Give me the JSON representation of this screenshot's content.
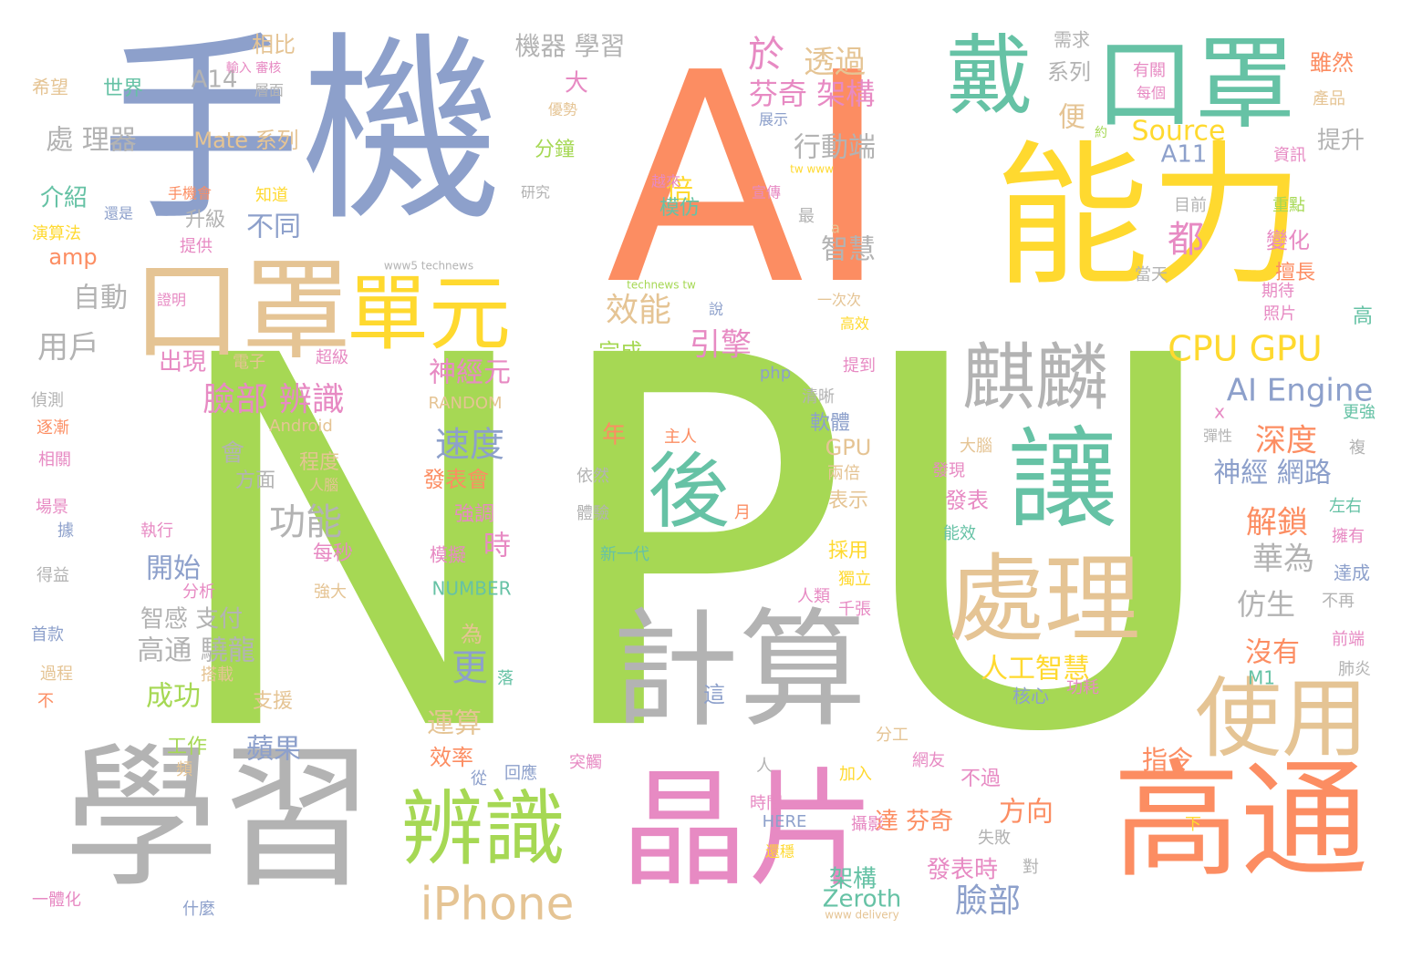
{
  "palette": {
    "green": "#a6d854",
    "orange": "#fc8d62",
    "blue": "#8da0cb",
    "yellow": "#ffd92f",
    "teal": "#66c2a5",
    "pink": "#e78ac3",
    "tan": "#e5c494",
    "gray": "#b3b3b3"
  },
  "words": [
    {
      "text": "NPU",
      "color": "green"
    },
    {
      "text": "AI",
      "color": "orange"
    },
    {
      "text": "手機",
      "color": "blue"
    },
    {
      "text": "能力",
      "color": "yellow"
    },
    {
      "text": "學習",
      "color": "gray"
    },
    {
      "text": "晶片",
      "color": "pink"
    },
    {
      "text": "高通",
      "color": "orange"
    },
    {
      "text": "計算",
      "color": "gray"
    },
    {
      "text": "口罩",
      "color": "teal"
    },
    {
      "text": "戴",
      "color": "teal"
    },
    {
      "text": "口罩",
      "color": "tan"
    },
    {
      "text": "讓",
      "color": "teal"
    },
    {
      "text": "處理",
      "color": "tan"
    },
    {
      "text": "後",
      "color": "teal"
    },
    {
      "text": "辨識",
      "color": "green"
    },
    {
      "text": "使用",
      "color": "tan"
    },
    {
      "text": "單元",
      "color": "yellow"
    },
    {
      "text": "麒麟",
      "color": "gray"
    },
    {
      "text": "iPhone",
      "color": "tan"
    },
    {
      "text": "CPU GPU",
      "color": "yellow"
    },
    {
      "text": "AI Engine",
      "color": "blue"
    },
    {
      "text": "臉部 辨識",
      "color": "pink"
    },
    {
      "text": "速度",
      "color": "blue"
    },
    {
      "text": "功能",
      "color": "gray"
    },
    {
      "text": "機器 學習",
      "color": "gray"
    },
    {
      "text": "處 理器",
      "color": "gray"
    },
    {
      "text": "Mate 系列",
      "color": "tan"
    },
    {
      "text": "A14",
      "color": "gray"
    },
    {
      "text": "相比",
      "color": "tan"
    },
    {
      "text": "於",
      "color": "pink"
    },
    {
      "text": "透過",
      "color": "tan"
    },
    {
      "text": "芬奇 架構",
      "color": "pink"
    },
    {
      "text": "大",
      "color": "pink"
    },
    {
      "text": "行動端",
      "color": "gray"
    },
    {
      "text": "效能",
      "color": "tan"
    },
    {
      "text": "引擎",
      "color": "pink"
    },
    {
      "text": "神經元",
      "color": "pink"
    },
    {
      "text": "都",
      "color": "pink"
    },
    {
      "text": "倍",
      "color": "yellow"
    },
    {
      "text": "不同",
      "color": "blue"
    },
    {
      "text": "智慧",
      "color": "gray"
    },
    {
      "text": "自動",
      "color": "gray"
    },
    {
      "text": "用戶",
      "color": "gray"
    },
    {
      "text": "出現",
      "color": "pink"
    },
    {
      "text": "amp",
      "color": "orange"
    },
    {
      "text": "介紹",
      "color": "teal"
    },
    {
      "text": "世界",
      "color": "teal"
    },
    {
      "text": "希望",
      "color": "tan"
    },
    {
      "text": "提升",
      "color": "gray"
    },
    {
      "text": "Source",
      "color": "yellow"
    },
    {
      "text": "A11",
      "color": "blue"
    },
    {
      "text": "系列",
      "color": "gray"
    },
    {
      "text": "便",
      "color": "tan"
    },
    {
      "text": "需求",
      "color": "gray"
    },
    {
      "text": "雖然",
      "color": "orange"
    },
    {
      "text": "變化",
      "color": "pink"
    },
    {
      "text": "擅長",
      "color": "orange"
    },
    {
      "text": "深度",
      "color": "orange"
    },
    {
      "text": "神經 網路",
      "color": "blue"
    },
    {
      "text": "解鎖",
      "color": "orange"
    },
    {
      "text": "華為",
      "color": "gray"
    },
    {
      "text": "仿生",
      "color": "gray"
    },
    {
      "text": "沒有",
      "color": "orange"
    },
    {
      "text": "人工智慧",
      "color": "yellow"
    },
    {
      "text": "指令",
      "color": "orange"
    },
    {
      "text": "方向",
      "color": "orange"
    },
    {
      "text": "臉部",
      "color": "blue"
    },
    {
      "text": "開始",
      "color": "blue"
    },
    {
      "text": "成功",
      "color": "green"
    },
    {
      "text": "蘋果",
      "color": "blue"
    },
    {
      "text": "更",
      "color": "blue"
    },
    {
      "text": "運算",
      "color": "tan"
    },
    {
      "text": "效率",
      "color": "orange"
    },
    {
      "text": "高通 驍龍",
      "color": "gray"
    },
    {
      "text": "智感 支付",
      "color": "gray"
    },
    {
      "text": "時",
      "color": "pink"
    },
    {
      "text": "年",
      "color": "orange"
    },
    {
      "text": "發表會",
      "color": "orange"
    },
    {
      "text": "會",
      "color": "gray"
    },
    {
      "text": "GPU",
      "color": "tan"
    },
    {
      "text": "模仿",
      "color": "teal"
    },
    {
      "text": "分鐘",
      "color": "green"
    },
    {
      "text": "升級",
      "color": "gray"
    },
    {
      "text": "完成",
      "color": "green"
    },
    {
      "text": "程度",
      "color": "tan"
    },
    {
      "text": "方面",
      "color": "gray"
    },
    {
      "text": "表示",
      "color": "tan"
    },
    {
      "text": "發表",
      "color": "pink"
    },
    {
      "text": "軟體",
      "color": "blue"
    },
    {
      "text": "採用",
      "color": "yellow"
    },
    {
      "text": "達 芬奇",
      "color": "orange"
    },
    {
      "text": "發表時",
      "color": "pink"
    },
    {
      "text": "架構",
      "color": "teal"
    },
    {
      "text": "Zeroth",
      "color": "teal"
    },
    {
      "text": "不過",
      "color": "pink"
    },
    {
      "text": "支援",
      "color": "tan"
    },
    {
      "text": "工作",
      "color": "green"
    },
    {
      "text": "為",
      "color": "tan"
    },
    {
      "text": "每秒",
      "color": "pink"
    },
    {
      "text": "強調",
      "color": "pink"
    },
    {
      "text": "模擬",
      "color": "pink"
    },
    {
      "text": "NUMBER",
      "color": "teal"
    },
    {
      "text": "RANDOM",
      "color": "tan"
    },
    {
      "text": "Android",
      "color": "tan"
    },
    {
      "text": "php",
      "color": "blue"
    },
    {
      "text": "www5 technews",
      "color": "gray"
    },
    {
      "text": "technews tw",
      "color": "green"
    },
    {
      "text": "tw www",
      "color": "yellow"
    },
    {
      "text": "www delivery",
      "color": "tan"
    },
    {
      "text": "HERE",
      "color": "blue"
    },
    {
      "text": "M1",
      "color": "teal"
    },
    {
      "text": "x",
      "color": "pink"
    },
    {
      "text": "a",
      "color": "tan"
    },
    {
      "text": "高",
      "color": "teal"
    },
    {
      "text": "提到",
      "color": "pink"
    },
    {
      "text": "超級",
      "color": "pink"
    },
    {
      "text": "電子",
      "color": "tan"
    },
    {
      "text": "清晰",
      "color": "gray"
    },
    {
      "text": "依然",
      "color": "gray"
    },
    {
      "text": "體驗",
      "color": "gray"
    },
    {
      "text": "新一代",
      "color": "teal"
    },
    {
      "text": "主人",
      "color": "orange"
    },
    {
      "text": "月",
      "color": "orange"
    },
    {
      "text": "大腦",
      "color": "tan"
    },
    {
      "text": "發現",
      "color": "pink"
    },
    {
      "text": "兩倍",
      "color": "tan"
    },
    {
      "text": "能效",
      "color": "teal"
    },
    {
      "text": "獨立",
      "color": "yellow"
    },
    {
      "text": "千張",
      "color": "pink"
    },
    {
      "text": "人類",
      "color": "pink"
    },
    {
      "text": "核心",
      "color": "blue"
    },
    {
      "text": "功耗",
      "color": "pink"
    },
    {
      "text": "這",
      "color": "blue"
    },
    {
      "text": "落",
      "color": "teal"
    },
    {
      "text": "分工",
      "color": "tan"
    },
    {
      "text": "網友",
      "color": "pink"
    },
    {
      "text": "加入",
      "color": "yellow"
    },
    {
      "text": "時間",
      "color": "pink"
    },
    {
      "text": "攝影",
      "color": "pink"
    },
    {
      "text": "失敗",
      "color": "gray"
    },
    {
      "text": "對",
      "color": "gray"
    },
    {
      "text": "還穩",
      "color": "yellow"
    },
    {
      "text": "下",
      "color": "yellow"
    },
    {
      "text": "人",
      "color": "gray"
    },
    {
      "text": "突觸",
      "color": "pink"
    },
    {
      "text": "回應",
      "color": "blue"
    },
    {
      "text": "從",
      "color": "blue"
    },
    {
      "text": "頻",
      "color": "tan"
    },
    {
      "text": "什麼",
      "color": "blue"
    },
    {
      "text": "一體化",
      "color": "pink"
    },
    {
      "text": "不",
      "color": "orange"
    },
    {
      "text": "過程",
      "color": "tan"
    },
    {
      "text": "首款",
      "color": "blue"
    },
    {
      "text": "得益",
      "color": "gray"
    },
    {
      "text": "據",
      "color": "blue"
    },
    {
      "text": "場景",
      "color": "pink"
    },
    {
      "text": "相關",
      "color": "pink"
    },
    {
      "text": "逐漸",
      "color": "orange"
    },
    {
      "text": "偵測",
      "color": "gray"
    },
    {
      "text": "執行",
      "color": "pink"
    },
    {
      "text": "分析",
      "color": "pink"
    },
    {
      "text": "強大",
      "color": "tan"
    },
    {
      "text": "搭載",
      "color": "tan"
    },
    {
      "text": "人腦",
      "color": "tan"
    },
    {
      "text": "證明",
      "color": "pink"
    },
    {
      "text": "演算法",
      "color": "yellow"
    },
    {
      "text": "還是",
      "color": "blue"
    },
    {
      "text": "提供",
      "color": "pink"
    },
    {
      "text": "手機會",
      "color": "orange"
    },
    {
      "text": "知道",
      "color": "yellow"
    },
    {
      "text": "輸入 審核",
      "color": "pink"
    },
    {
      "text": "層面",
      "color": "gray"
    },
    {
      "text": "優勢",
      "color": "tan"
    },
    {
      "text": "研究",
      "color": "gray"
    },
    {
      "text": "越來",
      "color": "pink"
    },
    {
      "text": "宣傳",
      "color": "pink"
    },
    {
      "text": "最",
      "color": "gray"
    },
    {
      "text": "展示",
      "color": "blue"
    },
    {
      "text": "說",
      "color": "blue"
    },
    {
      "text": "一次次",
      "color": "tan"
    },
    {
      "text": "高效",
      "color": "yellow"
    },
    {
      "text": "約",
      "color": "green"
    },
    {
      "text": "有關",
      "color": "pink"
    },
    {
      "text": "每個",
      "color": "pink"
    },
    {
      "text": "產品",
      "color": "tan"
    },
    {
      "text": "資訊",
      "color": "pink"
    },
    {
      "text": "目前",
      "color": "gray"
    },
    {
      "text": "重點",
      "color": "green"
    },
    {
      "text": "當天",
      "color": "gray"
    },
    {
      "text": "期待",
      "color": "pink"
    },
    {
      "text": "照片",
      "color": "pink"
    },
    {
      "text": "更強",
      "color": "teal"
    },
    {
      "text": "彈性",
      "color": "gray"
    },
    {
      "text": "複",
      "color": "gray"
    },
    {
      "text": "左右",
      "color": "teal"
    },
    {
      "text": "擁有",
      "color": "pink"
    },
    {
      "text": "達成",
      "color": "blue"
    },
    {
      "text": "不再",
      "color": "gray"
    },
    {
      "text": "前端",
      "color": "pink"
    },
    {
      "text": "肺炎",
      "color": "gray"
    }
  ]
}
